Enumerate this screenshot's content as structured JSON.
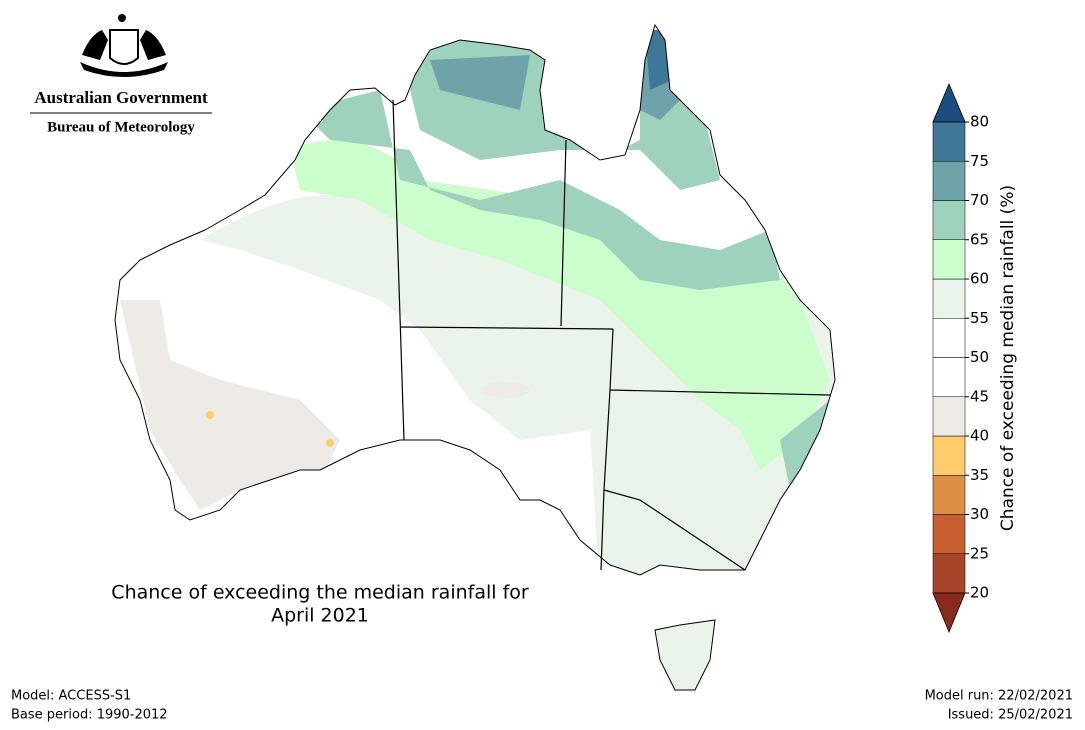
{
  "header": {
    "government": "Australian Government",
    "bureau": "Bureau of Meteorology"
  },
  "title": [
    "Chance of exceeding the median rainfall for",
    "April 2021"
  ],
  "colorbar": {
    "label": "Chance of exceeding median rainfall (%)",
    "ticks": [
      20,
      25,
      30,
      35,
      40,
      45,
      50,
      55,
      60,
      65,
      70,
      75,
      80
    ],
    "colors": [
      "#8a2a1c",
      "#a7442a",
      "#c95f31",
      "#dd8f43",
      "#fecc6b",
      "#eeeae6",
      "#ffffff",
      "#ffffff",
      "#eaf4ea",
      "#ccfdcc",
      "#9fd2bd",
      "#6ea3a9",
      "#3f7797",
      "#1c4d80"
    ]
  },
  "footer": {
    "model": "Model: ACCESS-S1",
    "base_period": "Base period: 1990-2012",
    "model_run": "Model run: 22/02/2021",
    "issued": "Issued: 25/02/2021"
  }
}
